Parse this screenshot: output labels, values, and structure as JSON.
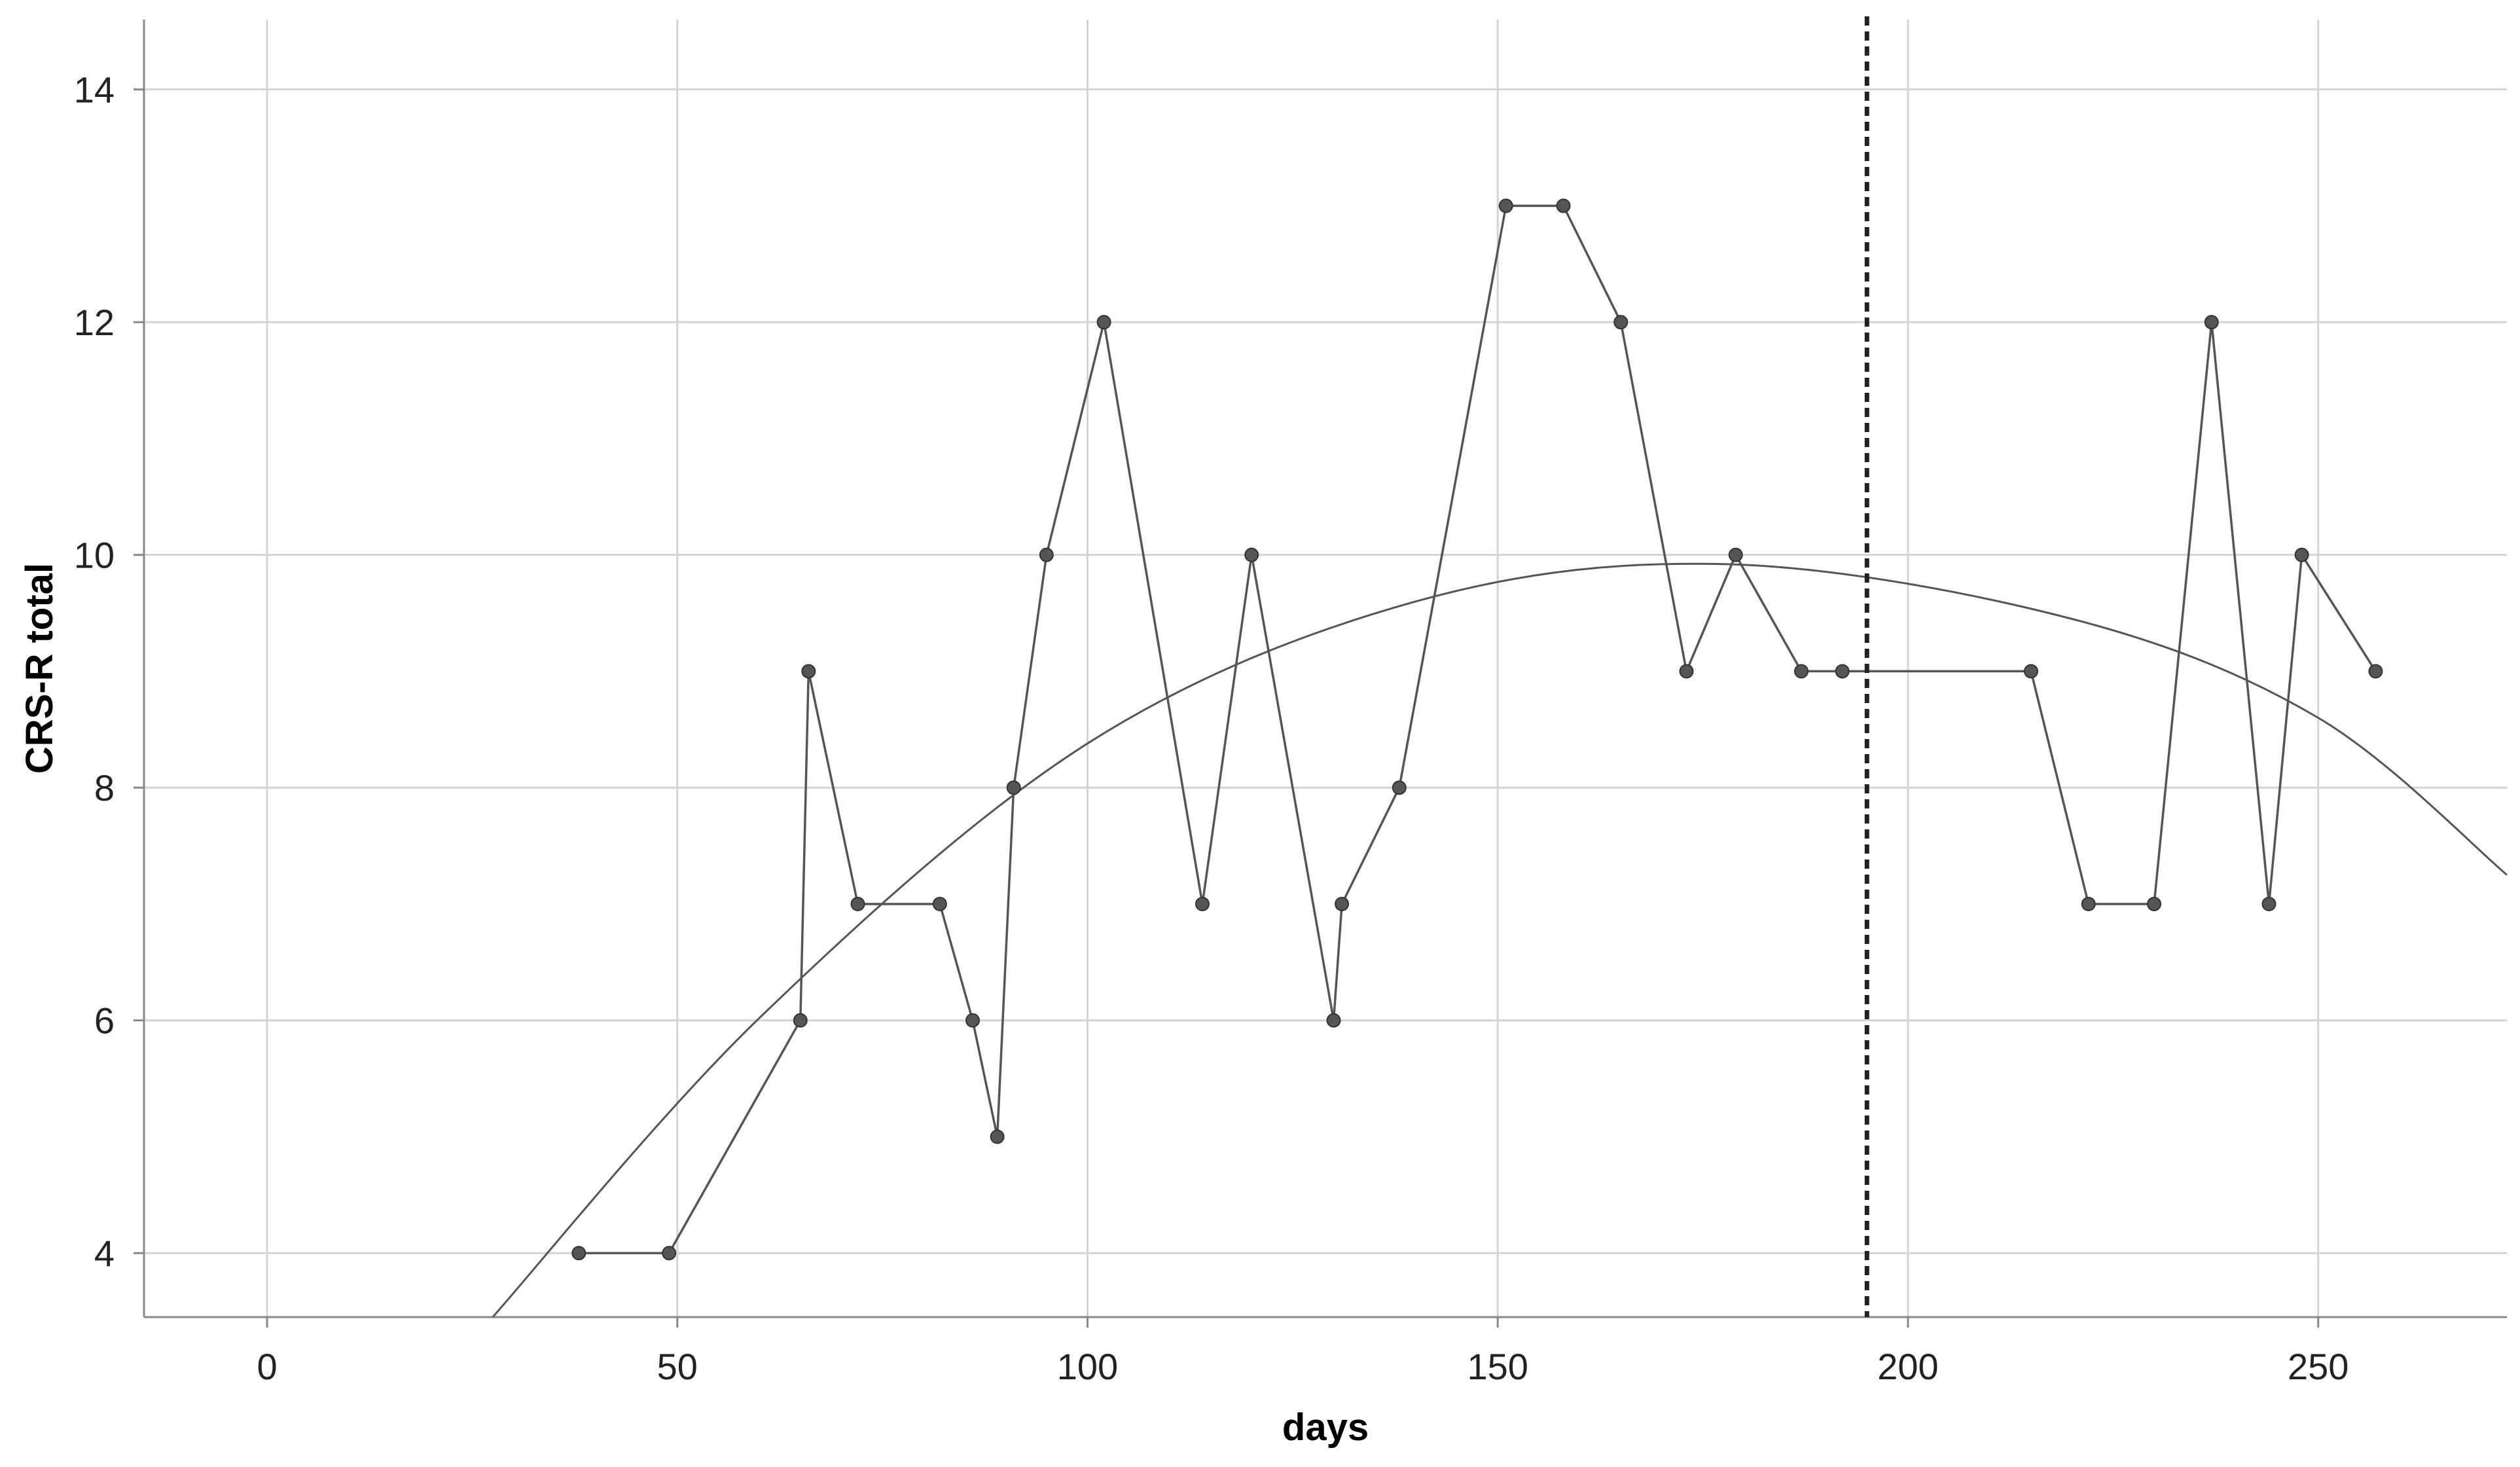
{
  "chart_data": {
    "type": "line",
    "xlabel": "days",
    "ylabel": "CRS-R total",
    "xlim": [
      -15,
      273
    ],
    "ylim": [
      3.45,
      14.6
    ],
    "xticks": [
      0,
      50,
      100,
      150,
      200,
      250
    ],
    "yticks": [
      4,
      6,
      8,
      10,
      12,
      14
    ],
    "grid": true,
    "series": [
      {
        "type": "line-with-markers",
        "x": [
          38,
          49,
          65,
          66,
          72,
          82,
          86,
          89,
          91,
          95,
          102,
          114,
          120,
          130,
          131,
          138,
          151,
          158,
          165,
          173,
          179,
          187,
          192,
          215,
          222,
          230,
          237,
          244,
          248,
          257
        ],
        "y": [
          4,
          4,
          6,
          9,
          7,
          7,
          6,
          5,
          8,
          10,
          12,
          7,
          10,
          6,
          7,
          8,
          13,
          13,
          12,
          9,
          10,
          9,
          9,
          9,
          7,
          7,
          12,
          7,
          10,
          9
        ]
      },
      {
        "type": "quadratic-fit",
        "x": [
          27.5,
          60,
          100,
          140,
          178,
          220,
          250,
          273
        ],
        "y": [
          3.45,
          6.02,
          8.38,
          9.6,
          9.92,
          9.45,
          8.6,
          7.25
        ]
      }
    ],
    "reference_lines": [
      {
        "axis": "x",
        "value": 195,
        "style": "dotted"
      }
    ],
    "colors": {
      "line": "#555555",
      "marker": "#555555",
      "grid": "#d4d4d4",
      "axis": "#888888",
      "reference": "#222222"
    }
  }
}
